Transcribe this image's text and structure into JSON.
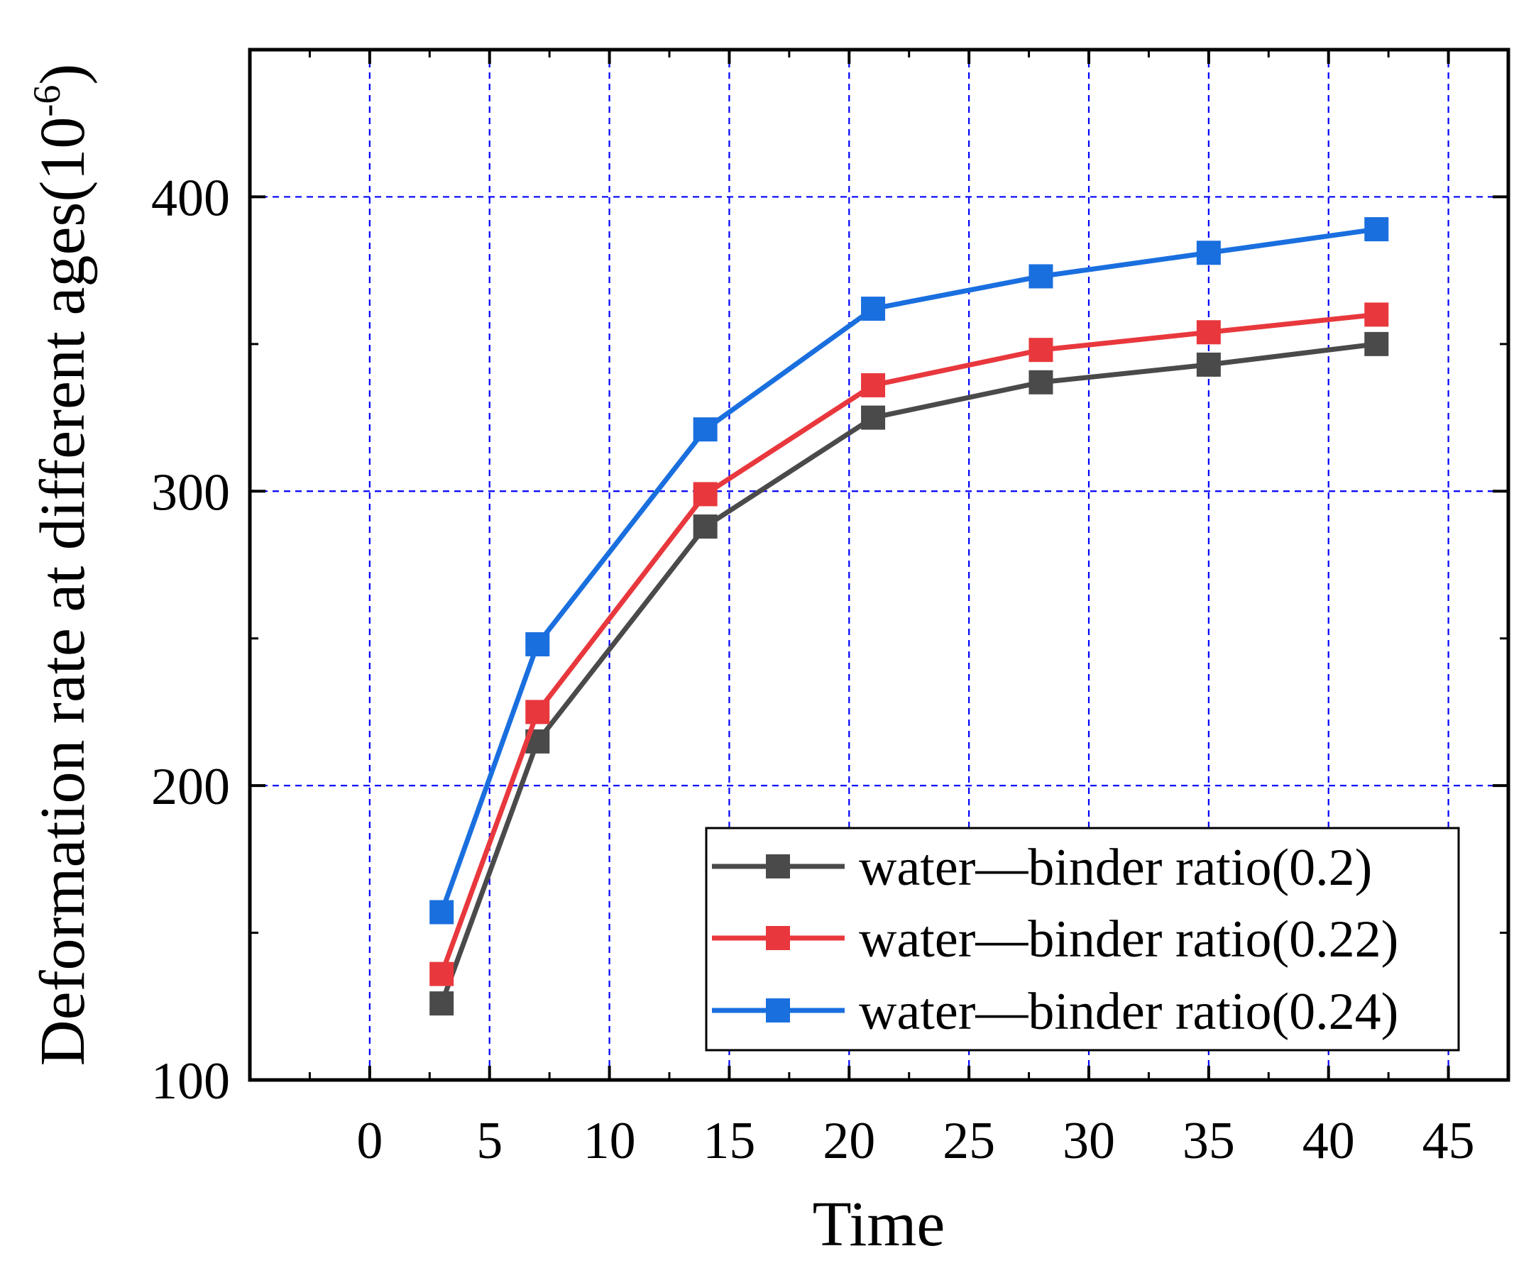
{
  "chart_data": {
    "type": "line",
    "title": "",
    "xlabel": "Time",
    "ylabel": "Deformation rate at different ages(10",
    "ylabel_exponent": "-6",
    "ylabel_close": ")",
    "xlim": [
      -5,
      47.5
    ],
    "ylim": [
      100,
      450
    ],
    "xticks": [
      0,
      5,
      10,
      15,
      20,
      25,
      30,
      35,
      40,
      45
    ],
    "yticks": [
      100,
      200,
      300,
      400
    ],
    "yticks_minor": [
      150,
      250,
      350
    ],
    "xtick_labels": [
      "0",
      "5",
      "10",
      "15",
      "20",
      "25",
      "30",
      "35",
      "40",
      "45"
    ],
    "ytick_labels": [
      "100",
      "200",
      "300",
      "400"
    ],
    "grid": true,
    "legend_position": "bottom-right",
    "x": [
      3,
      7,
      14,
      21,
      28,
      35,
      42
    ],
    "series": [
      {
        "name": "water—binder ratio(0.2)",
        "color": "#4a4a4a",
        "values": [
          126,
          215,
          288,
          325,
          337,
          343,
          350
        ]
      },
      {
        "name": "water—binder ratio(0.22)",
        "color": "#e8383d",
        "values": [
          136,
          225,
          299,
          336,
          348,
          354,
          360
        ]
      },
      {
        "name": "water—binder ratio(0.24)",
        "color": "#1a6fdf",
        "values": [
          157,
          248,
          321,
          362,
          373,
          381,
          389
        ]
      }
    ],
    "colors": {
      "grid": "#0000ff",
      "axis": "#000000"
    }
  }
}
